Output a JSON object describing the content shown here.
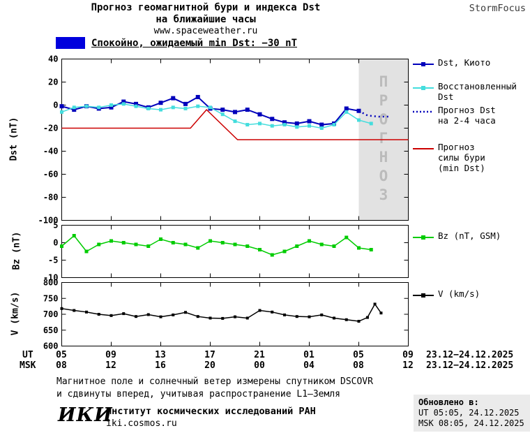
{
  "header": {
    "title_line1": "Прогноз геомагнитной бури и индекса Dst",
    "title_line2": "на ближайшие часы",
    "site": "www.spaceweather.ru",
    "brand": "StormFocus"
  },
  "banner": {
    "label": "Спокойно, ожидаемый min Dst: −30 nT",
    "box_color": "#0000dd"
  },
  "legend": {
    "items": [
      {
        "label": "Dst, Киото",
        "color": "#0000bb",
        "style": "solid-square"
      },
      {
        "label": "Восстановленный\nDst",
        "color": "#44dddd",
        "style": "solid-square"
      },
      {
        "label": "Прогноз Dst\nна 2-4 часа",
        "color": "#0000bb",
        "style": "dotted"
      },
      {
        "label": "Прогноз\nсилы бури\n(min Dst)",
        "color": "#cc0000",
        "style": "solid"
      },
      {
        "label": "Bz (nT, GSM)",
        "color": "#00cc00",
        "style": "solid-square"
      },
      {
        "label": "V (km/s)",
        "color": "#000000",
        "style": "solid-square"
      }
    ]
  },
  "chart_data": [
    {
      "type": "line",
      "panel": "dst",
      "ylabel": "Dst (nT)",
      "ylim": [
        -100,
        40
      ],
      "yticks": [
        40,
        20,
        0,
        -20,
        -40,
        -60,
        -80,
        -100
      ],
      "xlim": [
        5,
        33
      ],
      "xticks": [
        5,
        9,
        13,
        17,
        21,
        25,
        29,
        33
      ],
      "forecast_band": {
        "from": 29,
        "to": 33,
        "label": "ПРОГНОЗ",
        "fill": "#e2e2e2",
        "text_color": "#bbbbbb"
      },
      "series": [
        {
          "name": "Dst, Киото",
          "color": "#0000bb",
          "marker": true,
          "marker_size": 6,
          "width": 2,
          "x": [
            5,
            6,
            7,
            8,
            9,
            10,
            11,
            12,
            13,
            14,
            15,
            16,
            17,
            18,
            19,
            20,
            21,
            22,
            23,
            24,
            25,
            26,
            27,
            28,
            29
          ],
          "y": [
            -1,
            -4,
            -1,
            -3,
            -2,
            3,
            1,
            -2,
            2,
            6,
            1,
            7,
            -3,
            -4,
            -6,
            -4,
            -8,
            -12,
            -15,
            -16,
            -14,
            -17,
            -16,
            -3,
            -5
          ]
        },
        {
          "name": "Восстановленный Dst",
          "color": "#44dddd",
          "marker": true,
          "marker_size": 5,
          "width": 1.5,
          "x": [
            5,
            6,
            7,
            8,
            9,
            10,
            11,
            12,
            13,
            14,
            15,
            16,
            17,
            18,
            19,
            20,
            21,
            22,
            23,
            24,
            25,
            26,
            27,
            28,
            29,
            30
          ],
          "y": [
            -6,
            -2,
            -1,
            -2,
            0,
            1,
            -1,
            -3,
            -4,
            -2,
            -3,
            -1,
            -2,
            -8,
            -14,
            -17,
            -16,
            -18,
            -17,
            -19,
            -18,
            -20,
            -17,
            -6,
            -13,
            -16
          ]
        },
        {
          "name": "Прогноз Dst на 2-4 часа",
          "color": "#0000bb",
          "dotted": true,
          "width": 2.5,
          "x": [
            29,
            29.7,
            30.6,
            31.4
          ],
          "y": [
            -5,
            -9,
            -10,
            -10
          ]
        },
        {
          "name": "Прогноз силы бури (min Dst)",
          "color": "#cc0000",
          "width": 1.5,
          "x": [
            5,
            15.4,
            16.7,
            19.2,
            33
          ],
          "y": [
            -20,
            -20,
            -4,
            -30,
            -30
          ]
        }
      ]
    },
    {
      "type": "line",
      "panel": "bz",
      "ylabel": "Bz (nT)",
      "ylim": [
        -10,
        5
      ],
      "yticks": [
        5,
        0,
        -5,
        -10
      ],
      "xlim": [
        5,
        33
      ],
      "xticks": [
        5,
        9,
        13,
        17,
        21,
        25,
        29,
        33
      ],
      "series": [
        {
          "name": "Bz (nT, GSM)",
          "color": "#00cc00",
          "marker": true,
          "marker_size": 5,
          "width": 1.5,
          "x": [
            5,
            6,
            7,
            8,
            9,
            10,
            11,
            12,
            13,
            14,
            15,
            16,
            17,
            18,
            19,
            20,
            21,
            22,
            23,
            24,
            25,
            26,
            27,
            28,
            29,
            30
          ],
          "y": [
            -1,
            2,
            -2.5,
            -0.5,
            0.5,
            0,
            -0.5,
            -1,
            1,
            0,
            -0.5,
            -1.5,
            0.5,
            0,
            -0.5,
            -1,
            -2,
            -3.5,
            -2.5,
            -1,
            0.5,
            -0.5,
            -1,
            1.5,
            -1.5,
            -2
          ]
        }
      ]
    },
    {
      "type": "line",
      "panel": "v",
      "ylabel": "V (km/s)",
      "ylim": [
        600,
        800
      ],
      "yticks": [
        800,
        750,
        700,
        650,
        600
      ],
      "xlim": [
        5,
        33
      ],
      "xticks": [
        5,
        9,
        13,
        17,
        21,
        25,
        29,
        33
      ],
      "series": [
        {
          "name": "V (km/s)",
          "color": "#000000",
          "marker": true,
          "marker_size": 4,
          "width": 1.5,
          "x": [
            5,
            6,
            7,
            8,
            9,
            10,
            11,
            12,
            13,
            14,
            15,
            16,
            17,
            18,
            19,
            20,
            21,
            22,
            23,
            24,
            25,
            26,
            27,
            28,
            29,
            29.7,
            30.3,
            30.8
          ],
          "y": [
            718,
            712,
            707,
            700,
            696,
            702,
            693,
            699,
            692,
            698,
            706,
            693,
            688,
            687,
            692,
            688,
            712,
            707,
            698,
            693,
            692,
            698,
            688,
            683,
            678,
            690,
            732,
            704
          ]
        }
      ]
    }
  ],
  "xaxis": {
    "ut_label": "UT",
    "msk_label": "MSK",
    "ut_ticks": [
      "05",
      "09",
      "13",
      "17",
      "21",
      "01",
      "05",
      "09"
    ],
    "msk_ticks": [
      "08",
      "12",
      "16",
      "20",
      "00",
      "04",
      "08",
      "12"
    ],
    "ut_date": "23.12−24.12.2025",
    "msk_date": "23.12−24.12.2025"
  },
  "notes": {
    "line1": "Магнитное поле и солнечный ветер измерены спутником DSCOVR",
    "line2": "и сдвинуты вперед, учитывая распространение L1—Земля"
  },
  "footer": {
    "logo": "ИКИ",
    "institute": "Институт космических исследований РАН",
    "site": "iki.cosmos.ru",
    "updated_label": "Обновлено в:",
    "updated_ut": "UT  05:05, 24.12.2025",
    "updated_msk": "MSK 08:05, 24.12.2025"
  }
}
